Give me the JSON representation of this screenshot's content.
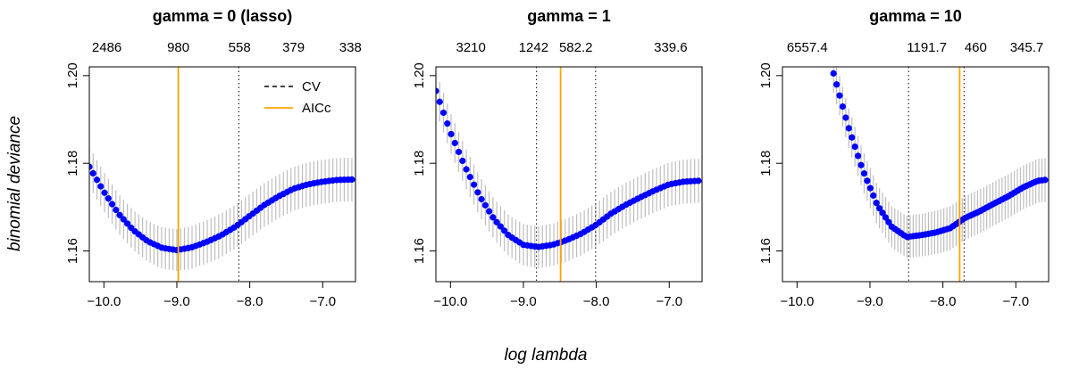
{
  "xlabel": "log lambda",
  "ylabel": "binomial deviance",
  "colors": {
    "cv_line": "#000000",
    "aicc_line": "#FFA500",
    "points": "#0000FF",
    "errorbars": "#BEBEBE"
  },
  "legend": {
    "placement": "top-right",
    "entries": [
      {
        "label": "CV",
        "style": "dashed",
        "color": "#000000"
      },
      {
        "label": "AICc",
        "style": "solid",
        "color": "#FFA500"
      }
    ]
  },
  "chart_data": [
    {
      "type": "scatter",
      "title": "gamma = 0 (lasso)",
      "xlim": [
        -10.2,
        -6.55
      ],
      "ylim": [
        1.153,
        1.202
      ],
      "xticks": [
        -10.0,
        -9.0,
        -8.0,
        -7.0
      ],
      "xtick_labels": [
        "−10.0",
        "−9.0",
        "−8.0",
        "−7.0"
      ],
      "yticks": [
        1.16,
        1.18,
        1.2
      ],
      "ytick_labels": [
        "1.16",
        "1.18",
        "1.20"
      ],
      "top_axis": [
        {
          "x": -9.96,
          "label": "2486"
        },
        {
          "x": -8.98,
          "label": "980"
        },
        {
          "x": -8.14,
          "label": "558"
        },
        {
          "x": -7.4,
          "label": "379"
        },
        {
          "x": -6.62,
          "label": "338"
        }
      ],
      "cv_line_x": [
        -8.15
      ],
      "aicc_line_x": -8.98,
      "show_legend": true,
      "x_range": [
        -10.2,
        -6.6
      ],
      "curve_knots": [
        [
          -10.2,
          1.1792
        ],
        [
          -10.0,
          1.1735
        ],
        [
          -9.8,
          1.1685
        ],
        [
          -9.6,
          1.1648
        ],
        [
          -9.4,
          1.1622
        ],
        [
          -9.2,
          1.1607
        ],
        [
          -9.0,
          1.1602
        ],
        [
          -8.8,
          1.1608
        ],
        [
          -8.6,
          1.162
        ],
        [
          -8.4,
          1.1635
        ],
        [
          -8.2,
          1.1655
        ],
        [
          -8.0,
          1.168
        ],
        [
          -7.8,
          1.1705
        ],
        [
          -7.6,
          1.1725
        ],
        [
          -7.4,
          1.1742
        ],
        [
          -7.2,
          1.1752
        ],
        [
          -7.0,
          1.1758
        ],
        [
          -6.8,
          1.1762
        ],
        [
          -6.6,
          1.1763
        ]
      ],
      "se_knots": [
        [
          -10.2,
          0.0045
        ],
        [
          -9.6,
          0.0045
        ],
        [
          -9.0,
          0.0048
        ],
        [
          -8.4,
          0.005
        ],
        [
          -7.8,
          0.005
        ],
        [
          -7.2,
          0.005
        ],
        [
          -6.6,
          0.005
        ]
      ]
    },
    {
      "type": "scatter",
      "title": "gamma = 1",
      "xlim": [
        -10.2,
        -6.55
      ],
      "ylim": [
        1.153,
        1.202
      ],
      "xticks": [
        -10.0,
        -9.0,
        -8.0,
        -7.0
      ],
      "xtick_labels": [
        "−10.0",
        "−9.0",
        "−8.0",
        "−7.0"
      ],
      "yticks": [
        1.16,
        1.18,
        1.2
      ],
      "ytick_labels": [
        "1.16",
        "1.18",
        "1.20"
      ],
      "top_axis": [
        {
          "x": -9.72,
          "label": "3210"
        },
        {
          "x": -8.86,
          "label": "1242"
        },
        {
          "x": -8.28,
          "label": "582.2"
        },
        {
          "x": -6.98,
          "label": "339.6"
        }
      ],
      "cv_line_x": [
        -8.82,
        -8.01
      ],
      "aicc_line_x": -8.49,
      "show_legend": false,
      "x_range": [
        -10.2,
        -6.6
      ],
      "curve_knots": [
        [
          -10.2,
          1.1965
        ],
        [
          -10.0,
          1.187
        ],
        [
          -9.8,
          1.1792
        ],
        [
          -9.6,
          1.1725
        ],
        [
          -9.4,
          1.1672
        ],
        [
          -9.2,
          1.1635
        ],
        [
          -9.0,
          1.1614
        ],
        [
          -8.8,
          1.1609
        ],
        [
          -8.6,
          1.1614
        ],
        [
          -8.4,
          1.1625
        ],
        [
          -8.2,
          1.164
        ],
        [
          -8.0,
          1.166
        ],
        [
          -7.8,
          1.1685
        ],
        [
          -7.6,
          1.1705
        ],
        [
          -7.4,
          1.1722
        ],
        [
          -7.2,
          1.1738
        ],
        [
          -7.0,
          1.1752
        ],
        [
          -6.8,
          1.1758
        ],
        [
          -6.6,
          1.176
        ]
      ],
      "se_knots": [
        [
          -10.2,
          0.0045
        ],
        [
          -9.4,
          0.0046
        ],
        [
          -8.8,
          0.0048
        ],
        [
          -8.0,
          0.005
        ],
        [
          -7.2,
          0.005
        ],
        [
          -6.6,
          0.005
        ]
      ]
    },
    {
      "type": "scatter",
      "title": "gamma = 10",
      "xlim": [
        -10.2,
        -6.55
      ],
      "ylim": [
        1.153,
        1.202
      ],
      "xticks": [
        -10.0,
        -9.0,
        -8.0,
        -7.0
      ],
      "xtick_labels": [
        "−10.0",
        "−9.0",
        "−8.0",
        "−7.0"
      ],
      "yticks": [
        1.16,
        1.18,
        1.2
      ],
      "ytick_labels": [
        "1.16",
        "1.18",
        "1.20"
      ],
      "top_axis": [
        {
          "x": -9.86,
          "label": "6557.4"
        },
        {
          "x": -8.22,
          "label": "1191.7"
        },
        {
          "x": -7.55,
          "label": "460"
        },
        {
          "x": -6.85,
          "label": "345.7"
        }
      ],
      "cv_line_x": [
        -8.47,
        -7.71
      ],
      "aicc_line_x": -7.77,
      "show_legend": false,
      "x_range": [
        -9.5,
        -6.6
      ],
      "curve_knots": [
        [
          -9.5,
          1.2005
        ],
        [
          -9.3,
          1.1885
        ],
        [
          -9.1,
          1.1785
        ],
        [
          -8.9,
          1.1705
        ],
        [
          -8.7,
          1.1655
        ],
        [
          -8.5,
          1.1632
        ],
        [
          -8.3,
          1.1636
        ],
        [
          -8.1,
          1.1642
        ],
        [
          -7.9,
          1.1652
        ],
        [
          -7.7,
          1.1675
        ],
        [
          -7.5,
          1.169
        ],
        [
          -7.3,
          1.1708
        ],
        [
          -7.1,
          1.1725
        ],
        [
          -6.9,
          1.1745
        ],
        [
          -6.7,
          1.176
        ],
        [
          -6.6,
          1.1762
        ]
      ],
      "se_knots": [
        [
          -9.5,
          0.0045
        ],
        [
          -8.9,
          0.0046
        ],
        [
          -8.5,
          0.0048
        ],
        [
          -7.9,
          0.005
        ],
        [
          -7.1,
          0.005
        ],
        [
          -6.6,
          0.005
        ]
      ]
    }
  ]
}
